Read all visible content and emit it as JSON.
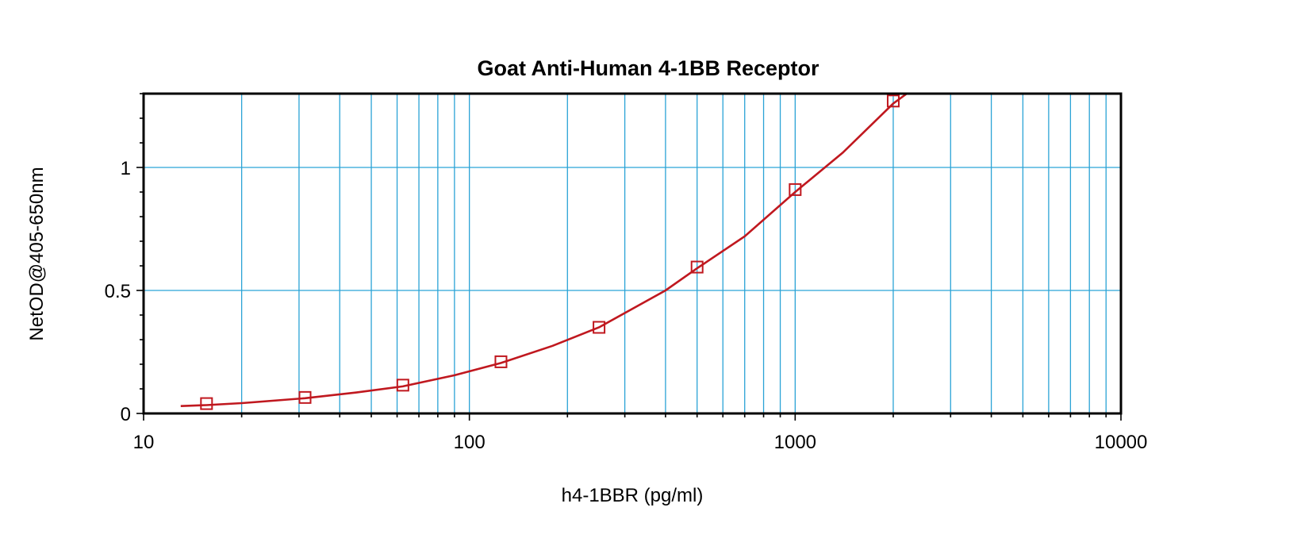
{
  "chart_data": {
    "type": "scatter",
    "title": "Goat Anti-Human 4-1BB Receptor",
    "xlabel": "h4-1BBR (pg/ml)",
    "ylabel": "NetOD@405-650nm",
    "x_scale": "log",
    "xlim": [
      10,
      10000
    ],
    "ylim": [
      0,
      1.3
    ],
    "x_ticks": [
      10,
      100,
      1000,
      10000
    ],
    "x_tick_labels": [
      "10",
      "100",
      "1000",
      "10000"
    ],
    "y_ticks": [
      0,
      0.5,
      1
    ],
    "y_tick_labels": [
      "0",
      "0.5",
      "1"
    ],
    "grid": true,
    "legend": "none",
    "series": [
      {
        "marker": "square",
        "color": "#c0181f",
        "x": [
          15.6,
          31.3,
          62.5,
          125,
          250,
          500,
          1000,
          2000
        ],
        "y": [
          0.04,
          0.065,
          0.115,
          0.21,
          0.35,
          0.595,
          0.91,
          1.27
        ]
      }
    ],
    "fit_curve": {
      "color": "#c0181f",
      "x": [
        13,
        15.6,
        20,
        31.3,
        45,
        62.5,
        90,
        125,
        180,
        250,
        400,
        500,
        700,
        1000,
        1400,
        2000,
        2200
      ],
      "y": [
        0.03,
        0.034,
        0.042,
        0.062,
        0.085,
        0.11,
        0.155,
        0.205,
        0.275,
        0.35,
        0.5,
        0.59,
        0.72,
        0.9,
        1.06,
        1.26,
        1.3
      ]
    }
  }
}
